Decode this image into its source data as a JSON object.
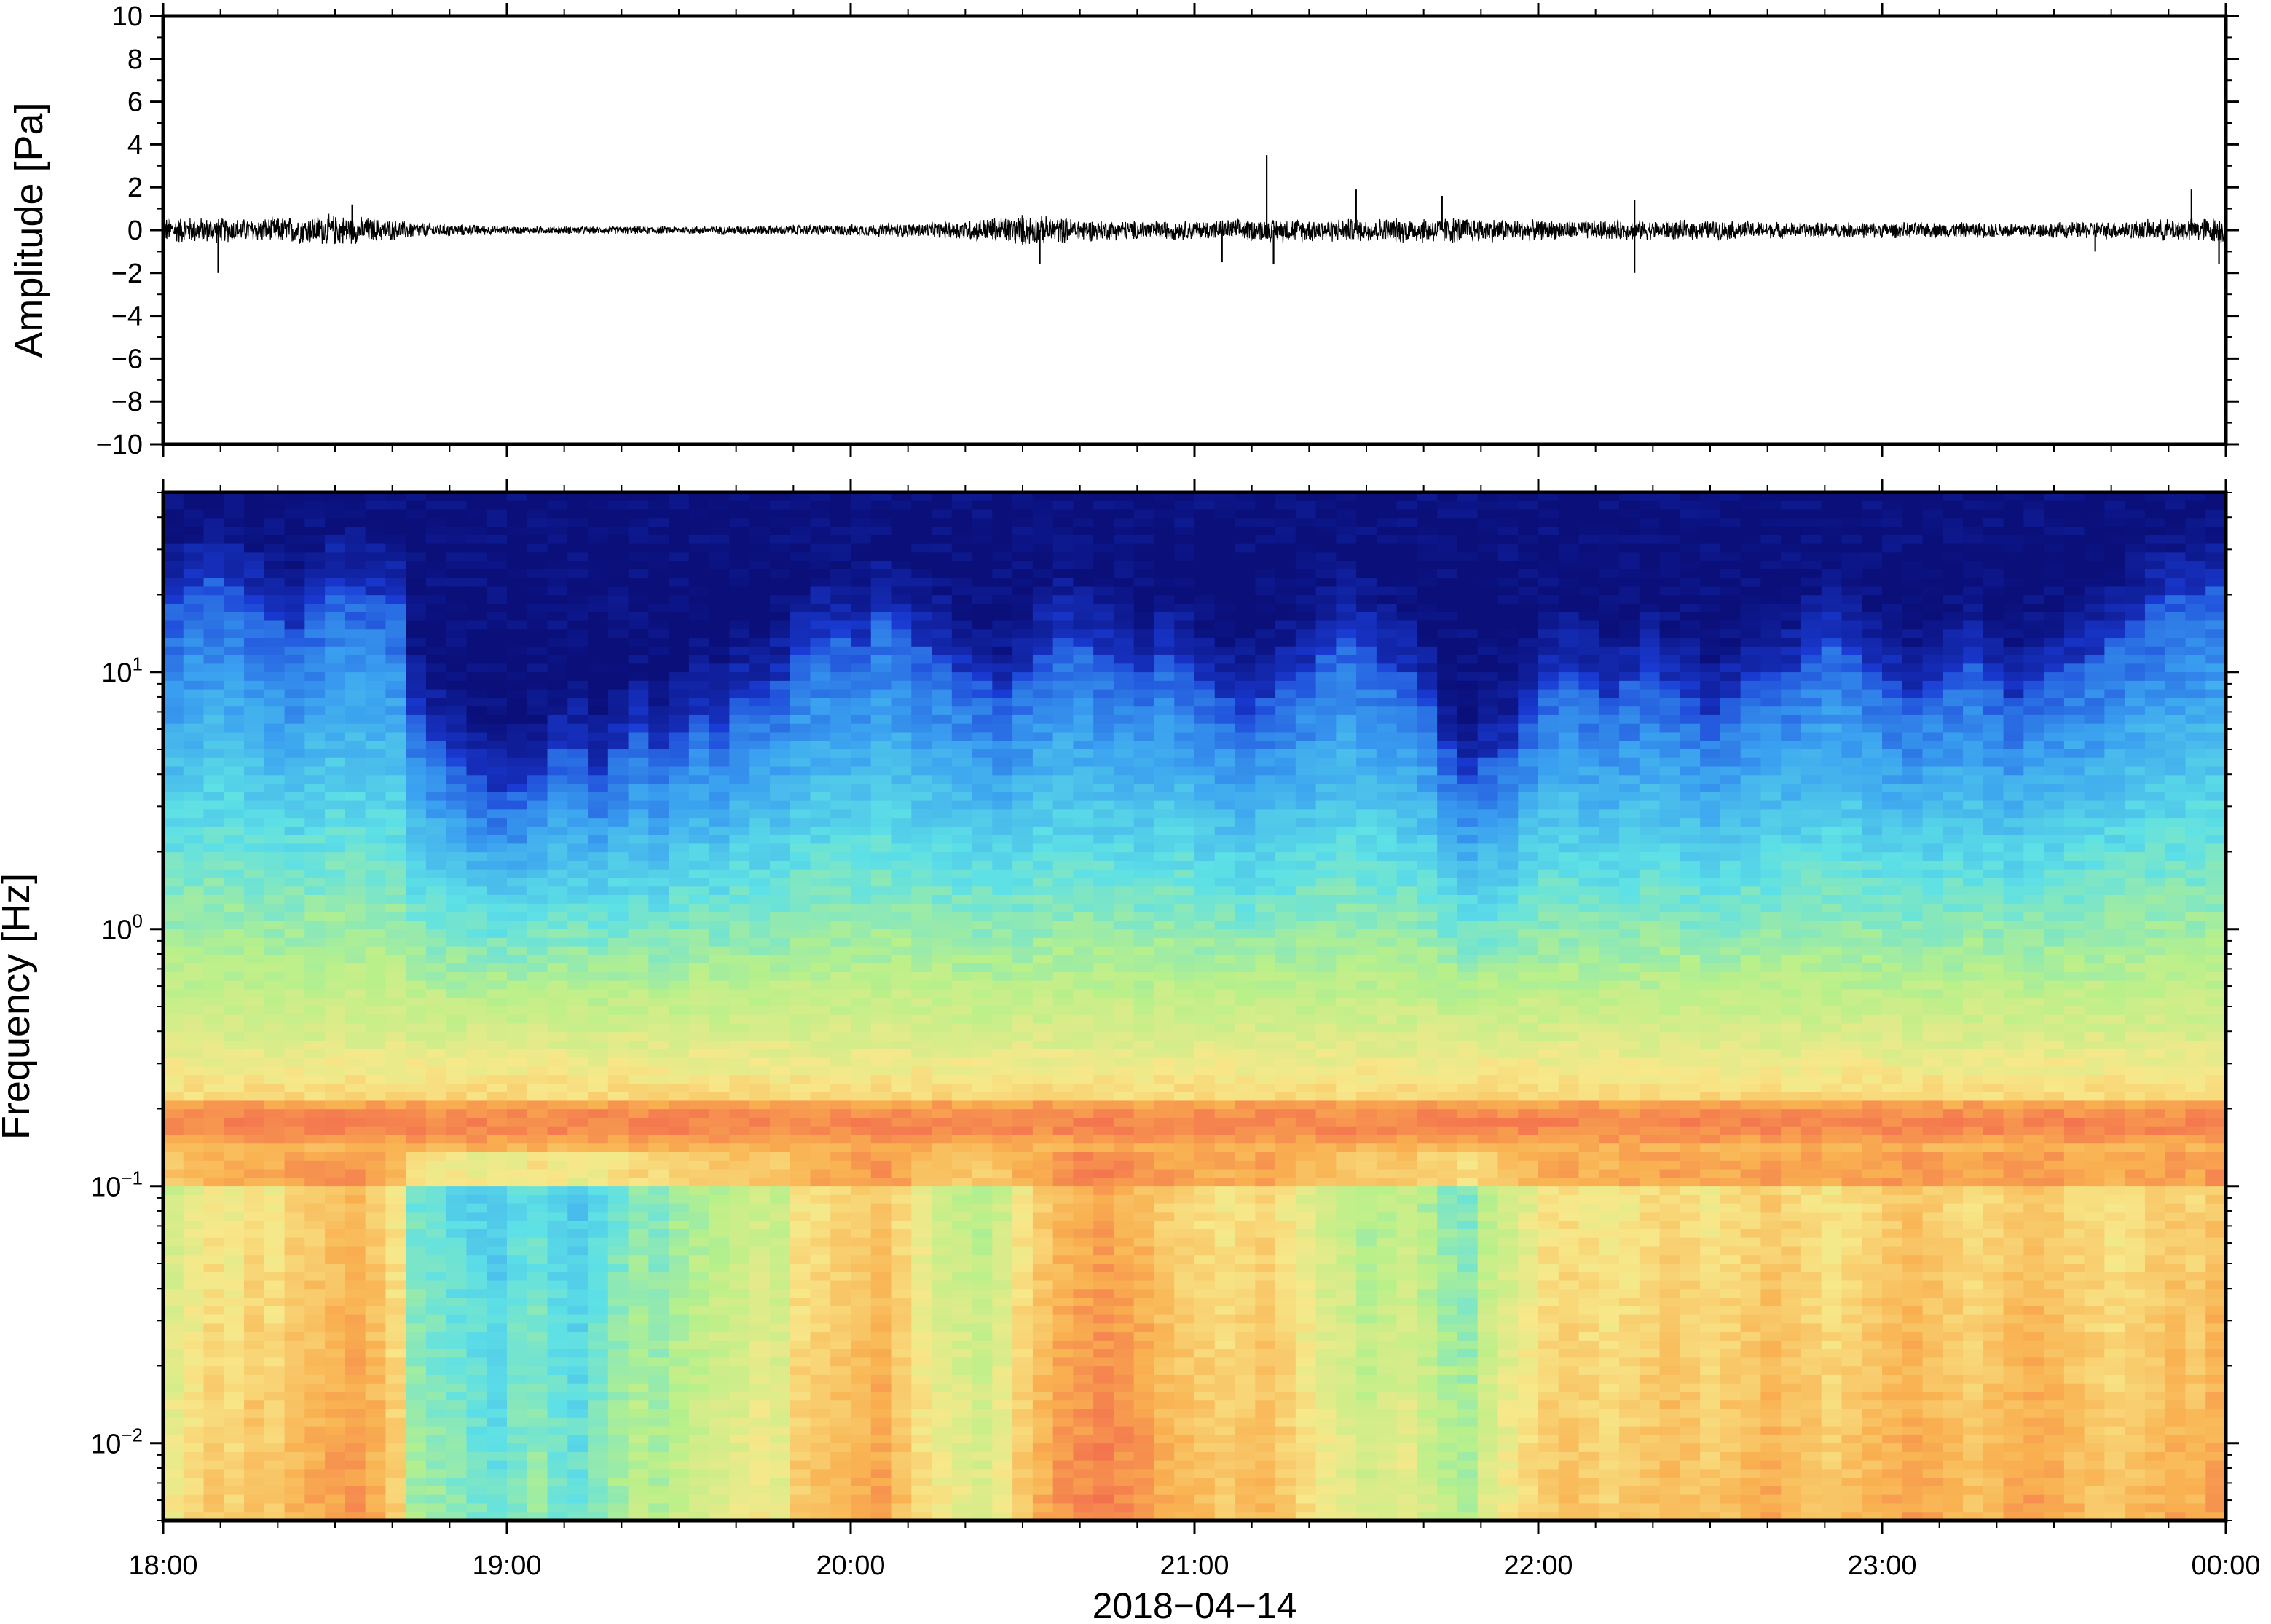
{
  "chart_data": [
    {
      "type": "line",
      "panel": "waveform",
      "title": "",
      "ylabel": "Amplitude [Pa]",
      "ylim": [
        -10,
        10
      ],
      "yticks": [
        "10",
        "8",
        "6",
        "4",
        "2",
        "0",
        "−2",
        "−4",
        "−6",
        "−8",
        "−10"
      ],
      "xlim": [
        "2018-04-14 18:00",
        "2018-04-15 00:00"
      ],
      "series_color": "#000000",
      "envelope": {
        "x_hours": [
          18.0,
          18.25,
          18.5,
          18.75,
          19.0,
          19.25,
          19.5,
          19.75,
          20.0,
          20.25,
          20.5,
          20.75,
          21.0,
          21.25,
          21.5,
          21.75,
          22.0,
          22.25,
          22.5,
          22.75,
          23.0,
          23.25,
          23.5,
          23.75,
          24.0
        ],
        "amplitude": [
          0.7,
          0.6,
          0.8,
          0.4,
          0.2,
          0.2,
          0.2,
          0.25,
          0.3,
          0.4,
          0.8,
          0.5,
          0.5,
          0.6,
          0.6,
          0.7,
          0.5,
          0.5,
          0.5,
          0.4,
          0.4,
          0.4,
          0.4,
          0.5,
          0.7
        ]
      },
      "spikes": [
        {
          "x_hours": 18.16,
          "y": -2.0
        },
        {
          "x_hours": 18.55,
          "y": 1.2
        },
        {
          "x_hours": 20.55,
          "y": -1.6
        },
        {
          "x_hours": 21.08,
          "y": -1.5
        },
        {
          "x_hours": 21.21,
          "y": 3.5
        },
        {
          "x_hours": 21.23,
          "y": -1.6
        },
        {
          "x_hours": 21.47,
          "y": 1.9
        },
        {
          "x_hours": 21.72,
          "y": 1.6
        },
        {
          "x_hours": 22.28,
          "y": -2.0
        },
        {
          "x_hours": 22.28,
          "y": 1.4
        },
        {
          "x_hours": 23.62,
          "y": -1.0
        },
        {
          "x_hours": 23.9,
          "y": 1.9
        },
        {
          "x_hours": 23.98,
          "y": -1.6
        }
      ]
    },
    {
      "type": "heatmap",
      "panel": "spectrogram",
      "title": "",
      "ylabel": "Frequency [Hz]",
      "yscale": "log",
      "ylim": [
        0.005,
        50
      ],
      "yticks": [
        {
          "value": 10,
          "base": "10",
          "exp": "1"
        },
        {
          "value": 1,
          "base": "10",
          "exp": "0"
        },
        {
          "value": 0.1,
          "base": "10",
          "exp": "−1"
        },
        {
          "value": 0.01,
          "base": "10",
          "exp": "−2"
        }
      ],
      "xlim": [
        "2018-04-14 18:00",
        "2018-04-15 00:00"
      ],
      "xticks": [
        "18:00",
        "19:00",
        "20:00",
        "21:00",
        "22:00",
        "23:00",
        "00:00"
      ],
      "xlabel": "2018−04−14",
      "colormap": "rainbow (dark blue = low power, red/pink = high power)",
      "colormap_stops": [
        "#0a0f7a",
        "#1a3cd6",
        "#3aa0f0",
        "#5de0e6",
        "#b8f08a",
        "#f7e88a",
        "#f9b050",
        "#f2654e",
        "#ff8f9a"
      ],
      "column_duration_minutes": 5,
      "blue_edge_hz": [
        18,
        22,
        24,
        22,
        19,
        16,
        15,
        18,
        22,
        21,
        20,
        19,
        7,
        5.5,
        4.5,
        4,
        3.5,
        3.5,
        4,
        5,
        5,
        4,
        5,
        6,
        5,
        6,
        7,
        6,
        8,
        8,
        9,
        12,
        14,
        14,
        13,
        17,
        15,
        13,
        12,
        10,
        9,
        8,
        10,
        12,
        14,
        13,
        12,
        11,
        10,
        12,
        11,
        9,
        8,
        7,
        8,
        9,
        10,
        12,
        14,
        13,
        11,
        10,
        8,
        5,
        4,
        4.5,
        5,
        7,
        9,
        10,
        9,
        8,
        9,
        10,
        9,
        8,
        7,
        8,
        9,
        10,
        10,
        12,
        14,
        12,
        10,
        9,
        8,
        9,
        10,
        11,
        9,
        8,
        9,
        10,
        11,
        12,
        14,
        16,
        18,
        20,
        20,
        22
      ],
      "low_band_power": [
        0.62,
        0.66,
        0.7,
        0.68,
        0.72,
        0.7,
        0.74,
        0.76,
        0.78,
        0.8,
        0.76,
        0.7,
        0.48,
        0.46,
        0.44,
        0.42,
        0.4,
        0.44,
        0.46,
        0.42,
        0.4,
        0.44,
        0.48,
        0.52,
        0.5,
        0.54,
        0.56,
        0.58,
        0.6,
        0.62,
        0.6,
        0.7,
        0.72,
        0.74,
        0.76,
        0.78,
        0.72,
        0.66,
        0.62,
        0.6,
        0.58,
        0.62,
        0.7,
        0.76,
        0.8,
        0.82,
        0.84,
        0.82,
        0.8,
        0.76,
        0.74,
        0.72,
        0.7,
        0.72,
        0.74,
        0.7,
        0.66,
        0.62,
        0.6,
        0.56,
        0.58,
        0.6,
        0.56,
        0.52,
        0.5,
        0.58,
        0.62,
        0.66,
        0.7,
        0.72,
        0.7,
        0.68,
        0.7,
        0.72,
        0.74,
        0.72,
        0.7,
        0.72,
        0.74,
        0.76,
        0.74,
        0.72,
        0.7,
        0.72,
        0.74,
        0.76,
        0.78,
        0.76,
        0.74,
        0.72,
        0.74,
        0.76,
        0.78,
        0.76,
        0.74,
        0.72,
        0.7,
        0.72,
        0.74,
        0.76,
        0.74,
        0.78
      ],
      "microbarom_band_hz": [
        0.14,
        0.22
      ]
    }
  ]
}
